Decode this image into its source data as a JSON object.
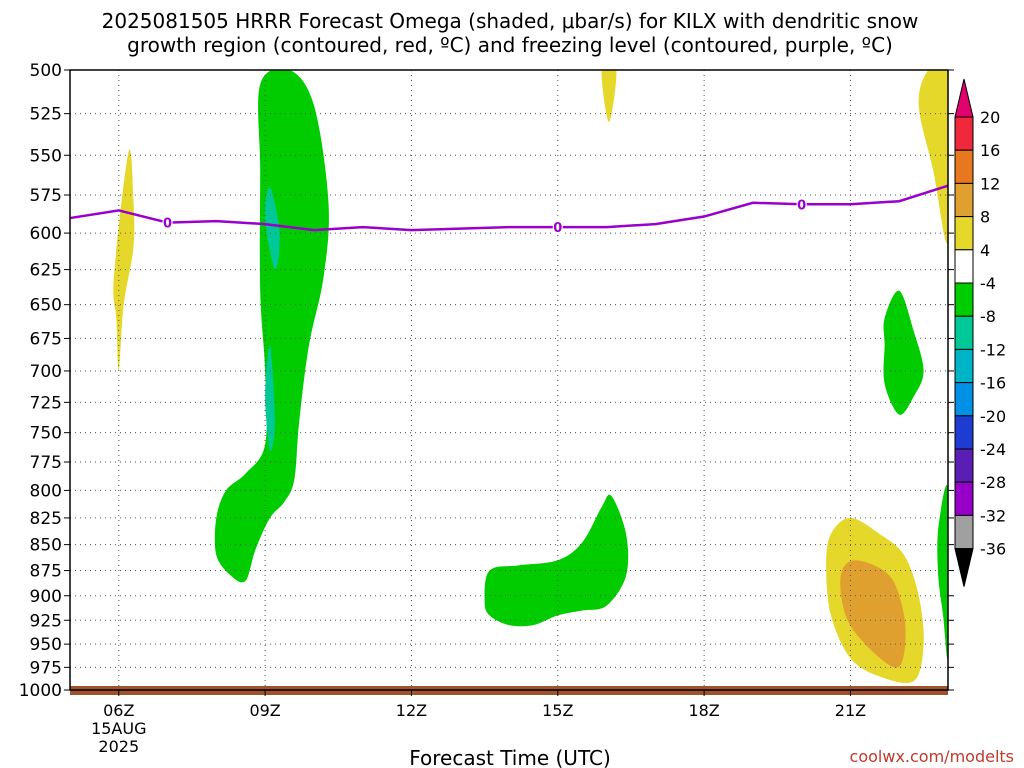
{
  "chart_data": {
    "type": "contour",
    "title_line1": "2025081505 HRRR Forecast Omega (shaded, μbar/s) for KILX with dendritic snow",
    "title_line2": "growth region (contoured, red, ºC) and freezing level (contoured, purple, ºC)",
    "xlabel": "Forecast Time (UTC)",
    "credit": "coolwx.com/modelts",
    "x_ticks": [
      {
        "hour": 6,
        "label": "06Z",
        "sub1": "15AUG",
        "sub2": "2025"
      },
      {
        "hour": 9,
        "label": "09Z"
      },
      {
        "hour": 12,
        "label": "12Z"
      },
      {
        "hour": 15,
        "label": "15Z"
      },
      {
        "hour": 18,
        "label": "18Z"
      },
      {
        "hour": 21,
        "label": "21Z"
      }
    ],
    "x_range": [
      5,
      23
    ],
    "y_range": [
      500,
      1000
    ],
    "y_ticks": [
      500,
      525,
      550,
      575,
      600,
      625,
      650,
      675,
      700,
      725,
      750,
      775,
      800,
      825,
      850,
      875,
      900,
      925,
      950,
      975,
      1000
    ],
    "y_scale": "log pressure (inverted)",
    "grid": true,
    "freezing_level": {
      "label": "0",
      "color": "#9900cc",
      "points": [
        [
          5,
          590
        ],
        [
          6,
          585
        ],
        [
          7,
          593
        ],
        [
          8,
          592
        ],
        [
          9,
          594
        ],
        [
          10,
          598
        ],
        [
          11,
          596
        ],
        [
          12,
          598
        ],
        [
          13,
          597
        ],
        [
          14,
          596
        ],
        [
          15,
          596
        ],
        [
          16,
          596
        ],
        [
          17,
          594
        ],
        [
          18,
          589
        ],
        [
          19,
          580
        ],
        [
          20,
          581
        ],
        [
          21,
          581
        ],
        [
          22,
          579
        ],
        [
          23,
          569
        ]
      ],
      "label_hours": [
        7,
        15,
        20
      ]
    },
    "colorbar": {
      "labels": [
        "20",
        "16",
        "12",
        "8",
        "4",
        "-4",
        "-8",
        "-12",
        "-16",
        "-20",
        "-24",
        "-28",
        "-32",
        "-36"
      ],
      "colors": [
        "#e0006e",
        "#f0283c",
        "#e87820",
        "#e0a030",
        "#e6d82a",
        "#ffffff",
        "#00cc00",
        "#00c896",
        "#00b4c8",
        "#0090e6",
        "#1e3cd2",
        "#5a1eb4",
        "#9600c8",
        "#a0a0a0",
        "#000000"
      ]
    },
    "shaded_regions": [
      {
        "name": "positive-omega-4-8",
        "color": "#e6d82a",
        "points": [
          [
            5.9,
            630
          ],
          [
            6.2,
            548
          ],
          [
            6.3,
            578
          ],
          [
            6.3,
            610
          ],
          [
            6.1,
            650
          ],
          [
            6.0,
            700
          ],
          [
            5.95,
            660
          ]
        ]
      },
      {
        "name": "negative-omega--4",
        "color": "#00cc00",
        "points": [
          [
            8.9,
            508
          ],
          [
            9.5,
            500
          ],
          [
            10.0,
            520
          ],
          [
            10.3,
            580
          ],
          [
            10.2,
            630
          ],
          [
            9.9,
            680
          ],
          [
            9.7,
            740
          ],
          [
            9.6,
            790
          ],
          [
            9.4,
            810
          ],
          [
            9.1,
            825
          ],
          [
            8.8,
            855
          ],
          [
            8.6,
            885
          ],
          [
            8.3,
            880
          ],
          [
            8.0,
            860
          ],
          [
            8.0,
            825
          ],
          [
            8.2,
            800
          ],
          [
            8.6,
            785
          ],
          [
            9.0,
            760
          ],
          [
            9.0,
            700
          ],
          [
            8.9,
            640
          ],
          [
            8.9,
            560
          ]
        ]
      },
      {
        "name": "negative-omega--8-upper",
        "color": "#00c896",
        "points": [
          [
            9.1,
            570
          ],
          [
            9.3,
            600
          ],
          [
            9.2,
            625
          ],
          [
            9.0,
            590
          ]
        ]
      },
      {
        "name": "negative-omega--8-lower",
        "color": "#00c896",
        "points": [
          [
            9.1,
            680
          ],
          [
            9.2,
            740
          ],
          [
            9.1,
            765
          ],
          [
            9.0,
            720
          ]
        ]
      },
      {
        "name": "negative-omega--4-15z",
        "color": "#00cc00",
        "points": [
          [
            13.6,
            875
          ],
          [
            14.2,
            870
          ],
          [
            15.0,
            865
          ],
          [
            15.5,
            848
          ],
          [
            15.9,
            815
          ],
          [
            16.1,
            805
          ],
          [
            16.4,
            840
          ],
          [
            16.4,
            880
          ],
          [
            16.0,
            910
          ],
          [
            15.5,
            915
          ],
          [
            15.0,
            920
          ],
          [
            14.5,
            930
          ],
          [
            14.0,
            930
          ],
          [
            13.6,
            920
          ],
          [
            13.5,
            905
          ]
        ]
      },
      {
        "name": "positive-omega-4-top",
        "color": "#e6d82a",
        "points": [
          [
            15.9,
            500
          ],
          [
            16.2,
            500
          ],
          [
            16.05,
            530
          ]
        ]
      },
      {
        "name": "negative-omega--4-22z",
        "color": "#00cc00",
        "points": [
          [
            21.7,
            660
          ],
          [
            22.0,
            640
          ],
          [
            22.3,
            670
          ],
          [
            22.5,
            700
          ],
          [
            22.3,
            720
          ],
          [
            22.0,
            735
          ],
          [
            21.7,
            710
          ],
          [
            21.7,
            680
          ]
        ]
      },
      {
        "name": "positive-omega-4-right",
        "color": "#e6d82a",
        "points": [
          [
            22.4,
            520
          ],
          [
            22.6,
            500
          ],
          [
            23.0,
            500
          ],
          [
            23.0,
            605
          ],
          [
            22.7,
            560
          ]
        ]
      },
      {
        "name": "negative-omega--4-right",
        "color": "#00cc00",
        "points": [
          [
            22.8,
            835
          ],
          [
            23.0,
            800
          ],
          [
            23.0,
            960
          ],
          [
            22.9,
            920
          ],
          [
            22.8,
            880
          ]
        ]
      },
      {
        "name": "positive-omega-4-21z",
        "color": "#e6d82a",
        "points": [
          [
            20.6,
            840
          ],
          [
            21.0,
            825
          ],
          [
            21.6,
            840
          ],
          [
            22.1,
            860
          ],
          [
            22.4,
            900
          ],
          [
            22.5,
            950
          ],
          [
            22.3,
            990
          ],
          [
            21.6,
            985
          ],
          [
            21.0,
            965
          ],
          [
            20.6,
            920
          ],
          [
            20.5,
            870
          ]
        ]
      },
      {
        "name": "positive-omega-8-21z",
        "color": "#e0a030",
        "points": [
          [
            20.8,
            880
          ],
          [
            21.1,
            865
          ],
          [
            21.8,
            880
          ],
          [
            22.1,
            920
          ],
          [
            22.1,
            960
          ],
          [
            21.9,
            975
          ],
          [
            21.3,
            950
          ],
          [
            20.9,
            920
          ]
        ]
      }
    ]
  }
}
